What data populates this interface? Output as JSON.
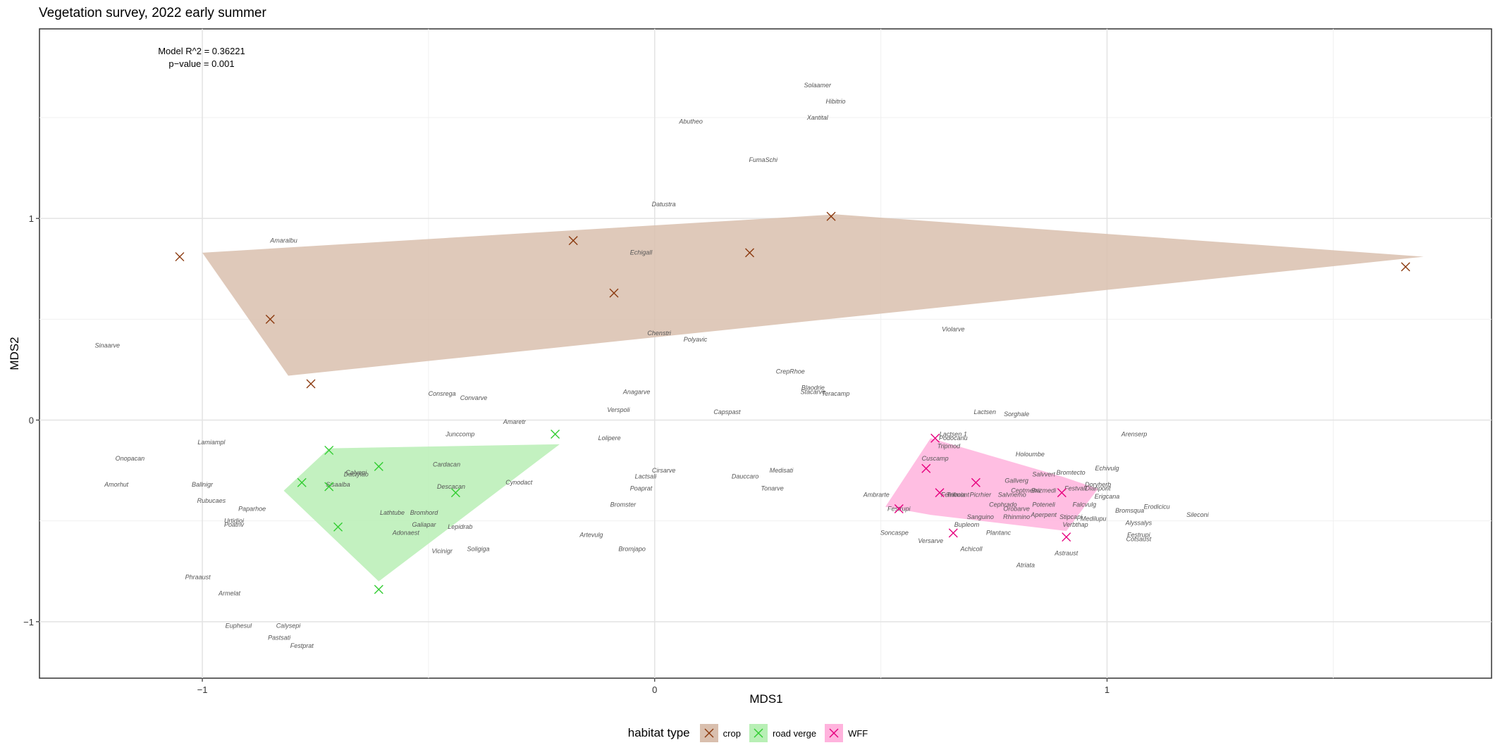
{
  "chart_data": {
    "type": "scatter",
    "title": "Vegetation survey, 2022 early summer",
    "xlabel": "MDS1",
    "ylabel": "MDS2",
    "xlim": [
      -1.36,
      1.85
    ],
    "ylim": [
      -1.28,
      1.94
    ],
    "x_ticks": [
      -1,
      0,
      1
    ],
    "y_ticks": [
      -1,
      0,
      1
    ],
    "x_tick_labels": [
      "−1",
      "0",
      "1"
    ],
    "y_tick_labels": [
      "−1",
      "0",
      "1"
    ],
    "grid": true,
    "annotation": [
      "Model R^2 = 0.36221",
      "p−value = 0.001"
    ],
    "legend": {
      "title": "habitat type",
      "position": "bottom",
      "entries": [
        "crop",
        "road verge",
        "WFF"
      ]
    },
    "colors": {
      "crop_marker": "#8b3a0f",
      "crop_fill": "#d9bfae",
      "road_verge_marker": "#32cd32",
      "road_verge_fill": "#b8efb5",
      "WFF_marker": "#e6007e",
      "WFF_fill": "#ffb3dd"
    },
    "hulls": [
      {
        "name": "crop",
        "points": [
          [
            -1.0,
            0.83
          ],
          [
            0.4,
            1.02
          ],
          [
            1.7,
            0.81
          ],
          [
            -0.81,
            0.22
          ]
        ]
      },
      {
        "name": "road verge",
        "points": [
          [
            -0.72,
            -0.14
          ],
          [
            -0.21,
            -0.12
          ],
          [
            -0.61,
            -0.8
          ],
          [
            -0.82,
            -0.35
          ]
        ]
      },
      {
        "name": "WFF",
        "points": [
          [
            0.61,
            -0.09
          ],
          [
            0.9,
            -0.28
          ],
          [
            0.98,
            -0.34
          ],
          [
            0.91,
            -0.55
          ],
          [
            0.61,
            -0.47
          ],
          [
            0.51,
            -0.43
          ]
        ]
      }
    ],
    "series": [
      {
        "name": "crop",
        "points": [
          [
            -1.05,
            0.81
          ],
          [
            -0.85,
            0.5
          ],
          [
            -0.76,
            0.18
          ],
          [
            -0.18,
            0.89
          ],
          [
            -0.09,
            0.63
          ],
          [
            0.21,
            0.83
          ],
          [
            0.39,
            1.01
          ],
          [
            1.66,
            0.76
          ]
        ]
      },
      {
        "name": "road verge",
        "points": [
          [
            -0.72,
            -0.15
          ],
          [
            -0.61,
            -0.23
          ],
          [
            -0.78,
            -0.31
          ],
          [
            -0.72,
            -0.33
          ],
          [
            -0.7,
            -0.53
          ],
          [
            -0.44,
            -0.36
          ],
          [
            -0.22,
            -0.07
          ],
          [
            -0.61,
            -0.84
          ]
        ]
      },
      {
        "name": "WFF",
        "points": [
          [
            0.62,
            -0.09
          ],
          [
            0.6,
            -0.24
          ],
          [
            0.54,
            -0.44
          ],
          [
            0.63,
            -0.36
          ],
          [
            0.71,
            -0.31
          ],
          [
            0.66,
            -0.56
          ],
          [
            0.9,
            -0.36
          ],
          [
            0.91,
            -0.58
          ]
        ]
      }
    ],
    "species": [
      {
        "label": "Solaamer",
        "x": 0.36,
        "y": 1.65
      },
      {
        "label": "Hibitrio",
        "x": 0.4,
        "y": 1.57
      },
      {
        "label": "Abutheo",
        "x": 0.08,
        "y": 1.47
      },
      {
        "label": "Xantital",
        "x": 0.36,
        "y": 1.49
      },
      {
        "label": "FumaSchi",
        "x": 0.24,
        "y": 1.28
      },
      {
        "label": "Datustra",
        "x": 0.02,
        "y": 1.06
      },
      {
        "label": "Amaralbu",
        "x": -0.82,
        "y": 0.88
      },
      {
        "label": "Echigall",
        "x": -0.03,
        "y": 0.82
      },
      {
        "label": "Sinaarve",
        "x": -1.21,
        "y": 0.36
      },
      {
        "label": "Chenstri",
        "x": 0.01,
        "y": 0.42
      },
      {
        "label": "Polyavic",
        "x": 0.09,
        "y": 0.39
      },
      {
        "label": "Violarve",
        "x": 0.66,
        "y": 0.44
      },
      {
        "label": "CrepRhoe",
        "x": 0.3,
        "y": 0.23
      },
      {
        "label": "Blaodrie",
        "x": 0.35,
        "y": 0.15
      },
      {
        "label": "Stacarve",
        "x": 0.35,
        "y": 0.13
      },
      {
        "label": "Teracamp",
        "x": 0.4,
        "y": 0.12
      },
      {
        "label": "Consrega",
        "x": -0.47,
        "y": 0.12
      },
      {
        "label": "Convarve",
        "x": -0.4,
        "y": 0.1
      },
      {
        "label": "Anagarve",
        "x": -0.04,
        "y": 0.13
      },
      {
        "label": "Verspoli",
        "x": -0.08,
        "y": 0.04
      },
      {
        "label": "Capspast",
        "x": 0.16,
        "y": 0.03
      },
      {
        "label": "Lactsen",
        "x": 0.73,
        "y": 0.03
      },
      {
        "label": "Sorghale",
        "x": 0.8,
        "y": 0.02
      },
      {
        "label": "Amaretr",
        "x": -0.31,
        "y": -0.02
      },
      {
        "label": "Junccomp",
        "x": -0.43,
        "y": -0.08
      },
      {
        "label": "Lolipere",
        "x": -0.1,
        "y": -0.1
      },
      {
        "label": "Lamiampl",
        "x": -0.98,
        "y": -0.12
      },
      {
        "label": "Onopacan",
        "x": -1.16,
        "y": -0.2
      },
      {
        "label": "Amorhut",
        "x": -1.19,
        "y": -0.33
      },
      {
        "label": "Ballnigr",
        "x": -1.0,
        "y": -0.33
      },
      {
        "label": "Rubucaes",
        "x": -0.98,
        "y": -0.41
      },
      {
        "label": "Paparhoe",
        "x": -0.89,
        "y": -0.45
      },
      {
        "label": "Urtidioi",
        "x": -0.93,
        "y": -0.51
      },
      {
        "label": "Poatriv",
        "x": -0.93,
        "y": -0.53
      },
      {
        "label": "Calyepi",
        "x": -0.66,
        "y": -0.27
      },
      {
        "label": "Dactylao",
        "x": -0.66,
        "y": -0.28
      },
      {
        "label": "Sisaalba",
        "x": -0.7,
        "y": -0.33
      },
      {
        "label": "Cardacan",
        "x": -0.46,
        "y": -0.23
      },
      {
        "label": "Descacan",
        "x": -0.45,
        "y": -0.34
      },
      {
        "label": "Cynodact",
        "x": -0.3,
        "y": -0.32
      },
      {
        "label": "Lathtube",
        "x": -0.58,
        "y": -0.47
      },
      {
        "label": "Bromhord",
        "x": -0.51,
        "y": -0.47
      },
      {
        "label": "Galiapar",
        "x": -0.51,
        "y": -0.53
      },
      {
        "label": "Adonaest",
        "x": -0.55,
        "y": -0.57
      },
      {
        "label": "Lepidrab",
        "x": -0.43,
        "y": -0.54
      },
      {
        "label": "Vicinigr",
        "x": -0.47,
        "y": -0.66
      },
      {
        "label": "Soligiga",
        "x": -0.39,
        "y": -0.65
      },
      {
        "label": "Phraaust",
        "x": -1.01,
        "y": -0.79
      },
      {
        "label": "Armelat",
        "x": -0.94,
        "y": -0.87
      },
      {
        "label": "Euphesul",
        "x": -0.92,
        "y": -1.03
      },
      {
        "label": "Calysepi",
        "x": -0.81,
        "y": -1.03
      },
      {
        "label": "Pastsati",
        "x": -0.83,
        "y": -1.09
      },
      {
        "label": "Festprat",
        "x": -0.78,
        "y": -1.13
      },
      {
        "label": "Cirsarve",
        "x": 0.02,
        "y": -0.26
      },
      {
        "label": "Lactsali",
        "x": -0.02,
        "y": -0.29
      },
      {
        "label": "Poaprat",
        "x": -0.03,
        "y": -0.35
      },
      {
        "label": "Bromster",
        "x": -0.07,
        "y": -0.43
      },
      {
        "label": "Dauccaro",
        "x": 0.2,
        "y": -0.29
      },
      {
        "label": "Medisati",
        "x": 0.28,
        "y": -0.26
      },
      {
        "label": "Tonarve",
        "x": 0.26,
        "y": -0.35
      },
      {
        "label": "Artevulg",
        "x": -0.14,
        "y": -0.58
      },
      {
        "label": "Bromjapo",
        "x": -0.05,
        "y": -0.65
      },
      {
        "label": "Lactsen 1",
        "x": 0.66,
        "y": -0.08
      },
      {
        "label": "Podocanu",
        "x": 0.66,
        "y": -0.1
      },
      {
        "label": "Tripmod",
        "x": 0.65,
        "y": -0.14
      },
      {
        "label": "Cuscamp",
        "x": 0.62,
        "y": -0.2
      },
      {
        "label": "Holoumbe",
        "x": 0.83,
        "y": -0.18
      },
      {
        "label": "Arenserp",
        "x": 1.06,
        "y": -0.08
      },
      {
        "label": "Echivulg",
        "x": 1.0,
        "y": -0.25
      },
      {
        "label": "Salvvert",
        "x": 0.86,
        "y": -0.28
      },
      {
        "label": "Bromtecto",
        "x": 0.92,
        "y": -0.27
      },
      {
        "label": "Gallverg",
        "x": 0.8,
        "y": -0.31
      },
      {
        "label": "Doryherb",
        "x": 0.98,
        "y": -0.33
      },
      {
        "label": "Dianpont",
        "x": 0.98,
        "y": -0.35
      },
      {
        "label": "Erigcana",
        "x": 1.0,
        "y": -0.39
      },
      {
        "label": "Ambrarte",
        "x": 0.49,
        "y": -0.38
      },
      {
        "label": "Festrupi",
        "x": 0.54,
        "y": -0.45
      },
      {
        "label": "Fernocia",
        "x": 0.66,
        "y": -0.38
      },
      {
        "label": "Trifmont",
        "x": 0.67,
        "y": -0.38
      },
      {
        "label": "Picrhier",
        "x": 0.72,
        "y": -0.38
      },
      {
        "label": "Salvnemo",
        "x": 0.79,
        "y": -0.38
      },
      {
        "label": "Ceptmenu",
        "x": 0.82,
        "y": -0.36
      },
      {
        "label": "Brizmedi",
        "x": 0.86,
        "y": -0.36
      },
      {
        "label": "Festvali",
        "x": 0.93,
        "y": -0.35
      },
      {
        "label": "Falcvulg",
        "x": 0.95,
        "y": -0.43
      },
      {
        "label": "Erodicicu",
        "x": 1.11,
        "y": -0.44
      },
      {
        "label": "Bromsqua",
        "x": 1.05,
        "y": -0.46
      },
      {
        "label": "Sileconi",
        "x": 1.2,
        "y": -0.48
      },
      {
        "label": "Cephrado",
        "x": 0.77,
        "y": -0.43
      },
      {
        "label": "Orobarve",
        "x": 0.8,
        "y": -0.45
      },
      {
        "label": "Poteneli",
        "x": 0.86,
        "y": -0.43
      },
      {
        "label": "Aperpent",
        "x": 0.86,
        "y": -0.48
      },
      {
        "label": "Sanguino",
        "x": 0.72,
        "y": -0.49
      },
      {
        "label": "Rhinmino",
        "x": 0.8,
        "y": -0.49
      },
      {
        "label": "Stipcapi",
        "x": 0.92,
        "y": -0.49
      },
      {
        "label": "Medilupu",
        "x": 0.97,
        "y": -0.5
      },
      {
        "label": "Alyssalys",
        "x": 1.07,
        "y": -0.52
      },
      {
        "label": "Verbthap",
        "x": 0.93,
        "y": -0.53
      },
      {
        "label": "Bupleom",
        "x": 0.69,
        "y": -0.53
      },
      {
        "label": "Soncaspe",
        "x": 0.53,
        "y": -0.57
      },
      {
        "label": "Versarve",
        "x": 0.61,
        "y": -0.61
      },
      {
        "label": "Plantanc",
        "x": 0.76,
        "y": -0.57
      },
      {
        "label": "Festrupi",
        "x": 1.07,
        "y": -0.58
      },
      {
        "label": "Cotsaust",
        "x": 1.07,
        "y": -0.6
      },
      {
        "label": "Achicoll",
        "x": 0.7,
        "y": -0.65
      },
      {
        "label": "Astraust",
        "x": 0.91,
        "y": -0.67
      },
      {
        "label": "Atriata",
        "x": 0.82,
        "y": -0.73
      }
    ]
  }
}
